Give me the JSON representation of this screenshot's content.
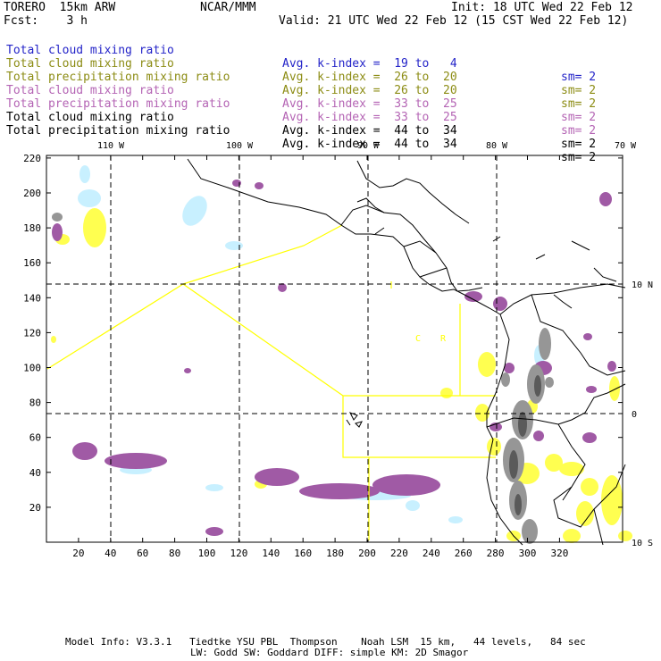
{
  "header": {
    "model": "TORERO  15km ARW",
    "org": "NCAR/MMM",
    "init": "Init: 18 UTC Wed 22 Feb 12",
    "fcst": "Fcst:    3 h",
    "valid": "Valid: 21 UTC Wed 22 Feb 12 (15 CST Wed 22 Feb 12)"
  },
  "legend": [
    {
      "field": "Total cloud mixing ratio",
      "index": "Avg. k-index =  19 to   4",
      "sm": "sm= 2",
      "color": "#2323c8"
    },
    {
      "field": "Total cloud mixing ratio",
      "index": "Avg. k-index =  26 to  20",
      "sm": "sm= 2",
      "color": "#8c8c14"
    },
    {
      "field": "Total precipitation mixing ratio",
      "index": "Avg. k-index =  26 to  20",
      "sm": "sm= 2",
      "color": "#8c8c14"
    },
    {
      "field": "Total cloud mixing ratio",
      "index": "Avg. k-index =  33 to  25",
      "sm": "sm= 2",
      "color": "#b464b4"
    },
    {
      "field": "Total precipitation mixing ratio",
      "index": "Avg. k-index =  33 to  25",
      "sm": "sm= 2",
      "color": "#b464b4"
    },
    {
      "field": "Total cloud mixing ratio",
      "index": "Avg. k-index =  44 to  34",
      "sm": "sm= 2",
      "color": "#000000"
    },
    {
      "field": "Total precipitation mixing ratio",
      "index": "Avg. k-index =  44 to  34",
      "sm": "sm= 2",
      "color": "#000000"
    }
  ],
  "map": {
    "x_ticks": [
      "20",
      "40",
      "60",
      "80",
      "100",
      "120",
      "140",
      "160",
      "180",
      "200",
      "220",
      "240",
      "260",
      "280",
      "300",
      "320"
    ],
    "y_ticks": [
      "20",
      "40",
      "60",
      "80",
      "100",
      "120",
      "140",
      "160",
      "180",
      "200",
      "220"
    ],
    "lon_labels": [
      "110 W",
      "100 W",
      "90 W",
      "80 W",
      "70 W"
    ],
    "lat_labels": [
      "10 N",
      "0",
      "10 S"
    ],
    "country_labels": [
      "C",
      "R"
    ],
    "colors": {
      "purple": "#a05aa5",
      "yellow": "#ffff50",
      "lightblue": "#c8f0ff",
      "gray": "#969696",
      "boundary": "#ffff00"
    }
  },
  "footer": {
    "line1": "Model Info: V3.3.1   Tiedtke YSU PBL  Thompson    Noah LSM  15 km,   44 levels,   84 sec",
    "line2": "LW: Godd SW: Goddard DIFF: simple KM: 2D Smagor"
  }
}
